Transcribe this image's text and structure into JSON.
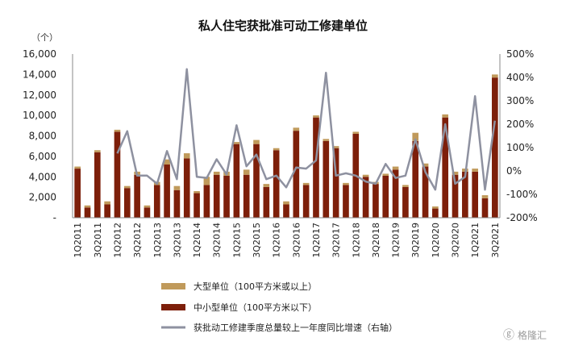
{
  "chart_data": {
    "type": "bar",
    "title": "私人住宅获批准可动工修建单位",
    "ylabel_unit": "（个）",
    "ylim": [
      0,
      16000
    ],
    "y_ticks": [
      "-",
      "2,000",
      "4,000",
      "6,000",
      "8,000",
      "10,000",
      "12,000",
      "14,000",
      "16,000"
    ],
    "y2lim": [
      -200,
      500
    ],
    "y2_ticks": [
      "-200%",
      "-100%",
      "0%",
      "100%",
      "200%",
      "300%",
      "400%",
      "500%"
    ],
    "x_tick_labels": [
      "1Q2011",
      "3Q2011",
      "1Q2012",
      "3Q2012",
      "1Q2013",
      "3Q2013",
      "1Q2014",
      "3Q2014",
      "1Q2015",
      "3Q2015",
      "1Q2016",
      "3Q2016",
      "1Q2017",
      "3Q2017",
      "1Q2018",
      "3Q2018",
      "1Q2019",
      "3Q2019",
      "1Q2020",
      "3Q2020",
      "1Q2021",
      "3Q2021"
    ],
    "categories": [
      "1Q2011",
      "2Q2011",
      "3Q2011",
      "4Q2011",
      "1Q2012",
      "2Q2012",
      "3Q2012",
      "4Q2012",
      "1Q2013",
      "2Q2013",
      "3Q2013",
      "4Q2013",
      "1Q2014",
      "2Q2014",
      "3Q2014",
      "4Q2014",
      "1Q2015",
      "2Q2015",
      "3Q2015",
      "4Q2015",
      "1Q2016",
      "2Q2016",
      "3Q2016",
      "4Q2016",
      "1Q2017",
      "2Q2017",
      "3Q2017",
      "4Q2017",
      "1Q2018",
      "2Q2018",
      "3Q2018",
      "4Q2018",
      "1Q2019",
      "2Q2019",
      "3Q2019",
      "4Q2019",
      "1Q2020",
      "2Q2020",
      "3Q2020",
      "4Q2020",
      "1Q2021",
      "2Q2021",
      "3Q2021"
    ],
    "series": [
      {
        "name": "中小型单位（100平方米以下）",
        "type": "bar",
        "stack": true,
        "values": [
          4800,
          1000,
          6400,
          1300,
          8400,
          2900,
          4200,
          1000,
          3200,
          5200,
          2700,
          5800,
          2400,
          3200,
          4200,
          4100,
          7200,
          4200,
          7200,
          3000,
          6600,
          1300,
          8500,
          3200,
          9800,
          7500,
          6800,
          3200,
          8200,
          4000,
          3300,
          4100,
          4700,
          3000,
          7500,
          5000,
          900,
          9800,
          4200,
          4500,
          4500,
          1900,
          13700
        ]
      },
      {
        "name": "大型单位（100平方米或以上）",
        "type": "bar",
        "stack": true,
        "values": [
          200,
          200,
          200,
          300,
          200,
          200,
          300,
          200,
          300,
          500,
          400,
          500,
          200,
          800,
          300,
          400,
          200,
          500,
          400,
          300,
          200,
          300,
          300,
          200,
          200,
          200,
          200,
          200,
          200,
          200,
          200,
          200,
          300,
          200,
          800,
          300,
          200,
          300,
          300,
          300,
          300,
          300,
          300
        ]
      },
      {
        "name": "获批动工修建季度总量较上一年度同比增速（右轴）",
        "type": "line",
        "axis": "right",
        "values": [
          null,
          null,
          null,
          null,
          75,
          170,
          -20,
          -20,
          -55,
          85,
          -35,
          435,
          -25,
          -30,
          50,
          -15,
          195,
          20,
          70,
          -35,
          -20,
          -70,
          15,
          10,
          45,
          420,
          -20,
          -10,
          -20,
          -45,
          -55,
          30,
          -30,
          -20,
          135,
          -5,
          -80,
          200,
          -55,
          -25,
          320,
          -80,
          215
        ]
      }
    ],
    "legend_position": "bottom-left",
    "colors": {
      "large": "#c09a5b",
      "small": "#7d1f0a",
      "line": "#8e91a0"
    }
  },
  "watermark": "格隆汇"
}
